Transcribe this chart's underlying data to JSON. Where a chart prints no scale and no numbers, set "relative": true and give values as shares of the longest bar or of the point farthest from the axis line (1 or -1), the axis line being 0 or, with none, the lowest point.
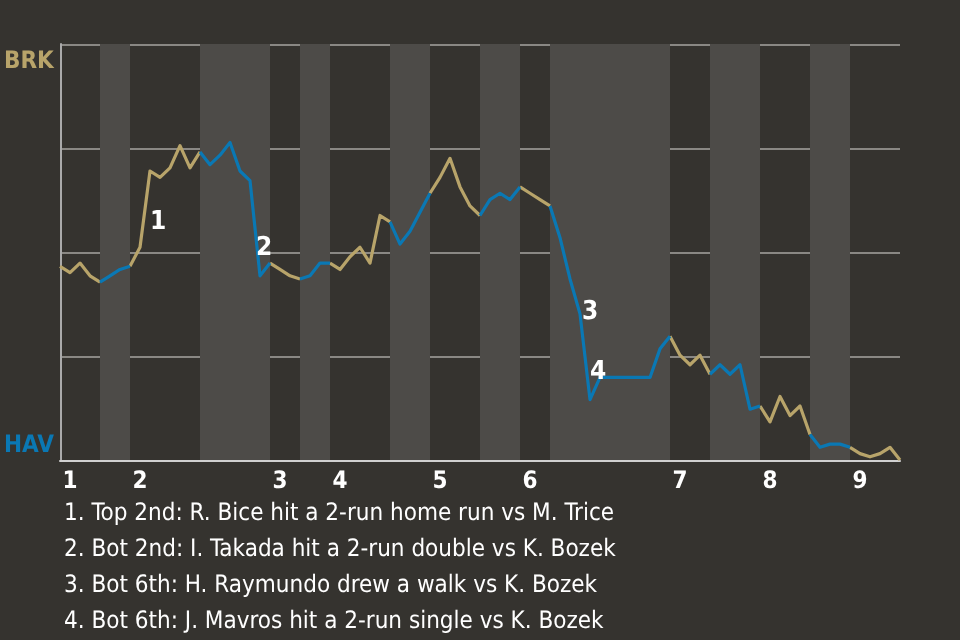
{
  "chart_data": {
    "type": "line",
    "relative": true,
    "grid": "y",
    "legend": "left",
    "marker": "none",
    "categories": [
      null,
      "1",
      null,
      null,
      null,
      null,
      null,
      null,
      "2",
      null,
      null,
      null,
      null,
      null,
      null,
      null,
      null,
      null,
      null,
      null,
      null,
      null,
      "3",
      null,
      null,
      null,
      null,
      null,
      "4",
      null,
      null,
      null,
      null,
      null,
      null,
      null,
      null,
      null,
      "5",
      null,
      null,
      null,
      null,
      null,
      null,
      null,
      null,
      "6",
      null,
      null,
      null,
      null,
      null,
      null,
      null,
      null,
      null,
      null,
      null,
      null,
      null,
      null,
      "7",
      null,
      null,
      null,
      null,
      null,
      null,
      null,
      null,
      "8",
      null,
      null,
      null,
      null,
      null,
      null,
      null,
      null,
      "9",
      null,
      null,
      null,
      null
    ],
    "series": [
      {
        "name": "BRK",
        "color": "#b8a46a",
        "values": [
          0.61,
          0.59,
          0.62,
          0.58,
          0.56,
          null,
          null,
          0.61,
          0.67,
          0.91,
          0.89,
          0.92,
          0.99,
          0.92,
          0.97,
          null,
          null,
          null,
          null,
          null,
          null,
          0.62,
          0.6,
          0.58,
          0.57,
          null,
          null,
          0.62,
          0.6,
          0.64,
          0.67,
          0.62,
          0.77,
          0.75,
          null,
          null,
          null,
          0.84,
          0.89,
          0.95,
          0.86,
          0.8,
          0.77,
          null,
          null,
          null,
          0.86,
          0.84,
          0.82,
          0.8,
          null,
          null,
          null,
          null,
          null,
          null,
          null,
          null,
          null,
          null,
          null,
          0.39,
          0.33,
          0.3,
          0.33,
          0.27,
          null,
          null,
          null,
          null,
          0.17,
          0.12,
          0.2,
          0.14,
          0.17,
          0.08,
          null,
          null,
          null,
          0.04,
          0.02,
          0.01,
          0.02,
          0.04,
          0
        ]
      },
      {
        "name": "HAV",
        "color": "#0a78b4",
        "values": [
          null,
          null,
          null,
          null,
          0.56,
          0.58,
          0.6,
          0.61,
          null,
          null,
          null,
          null,
          null,
          null,
          0.97,
          0.93,
          0.96,
          1,
          0.91,
          0.88,
          0.58,
          0.62,
          null,
          null,
          0.57,
          0.58,
          0.62,
          0.62,
          null,
          null,
          null,
          null,
          null,
          0.75,
          0.68,
          0.72,
          0.78,
          0.84,
          null,
          null,
          null,
          null,
          0.77,
          0.82,
          0.84,
          0.82,
          0.86,
          null,
          null,
          0.8,
          0.7,
          0.57,
          0.46,
          0.19,
          0.26,
          0.26,
          0.26,
          0.26,
          0.26,
          0.26,
          0.35,
          0.39,
          null,
          null,
          null,
          0.27,
          0.3,
          0.27,
          0.3,
          0.16,
          0.17,
          null,
          null,
          null,
          null,
          0.08,
          0.04,
          0.05,
          0.05,
          0.04,
          null,
          null,
          null,
          null,
          null
        ]
      }
    ],
    "annotations": [
      "1",
      "2",
      "3",
      "4",
      "1. Top 2nd: R. Bice hit a 2-run home run vs M. Trice",
      "2. Bot 2nd: I. Takada hit a 2-run double vs K. Bozek",
      "3. Bot 6th: H. Raymundo drew a walk vs K. Bozek",
      "4. Bot 6th: J. Mavros hit a 2-run single vs K. Bozek"
    ]
  }
}
